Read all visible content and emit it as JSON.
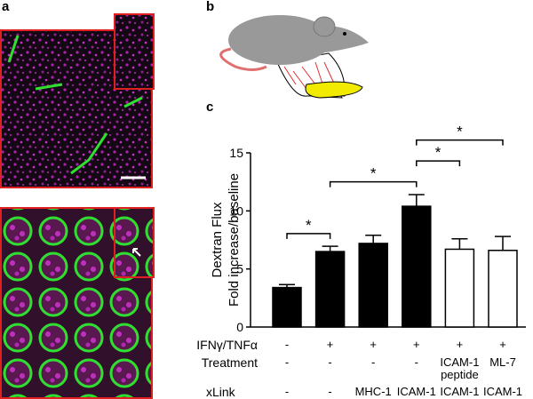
{
  "panels": {
    "a": "a",
    "b": "b",
    "c": "c"
  },
  "chart_data": {
    "type": "bar",
    "y_label": [
      "Dextran Flux",
      "Fold increase/baseline"
    ],
    "categories": [
      null,
      null,
      null,
      null,
      null,
      null
    ],
    "values": [
      3.4,
      6.5,
      7.2,
      10.4,
      6.7,
      6.6
    ],
    "errors": [
      0.25,
      0.45,
      0.7,
      1.0,
      0.9,
      1.2
    ],
    "colors": [
      "#000000",
      "#000000",
      "#000000",
      "#000000",
      "#ffffff",
      "#ffffff"
    ],
    "ylim": [
      0,
      15
    ],
    "yticks": [
      0,
      5,
      10,
      15
    ],
    "significance": [
      {
        "from": 0,
        "to": 1,
        "label": "*"
      },
      {
        "from": 1,
        "to": 3,
        "label": "*"
      },
      {
        "from": 3,
        "to": 4,
        "label": "*"
      },
      {
        "from": 3,
        "to": 5,
        "label": "*"
      }
    ],
    "rows": [
      {
        "label": "IFNγ/TNFα",
        "values": [
          "-",
          "+",
          "+",
          "+",
          "+",
          "+"
        ]
      },
      {
        "label": "Treatment",
        "values": [
          "-",
          "-",
          "-",
          "-",
          "ICAM-1 peptide",
          "ML-7"
        ]
      },
      {
        "label": "xLink",
        "values": [
          "-",
          "-",
          "MHC-1",
          "ICAM-1",
          "ICAM-1",
          "ICAM-1"
        ]
      }
    ]
  }
}
